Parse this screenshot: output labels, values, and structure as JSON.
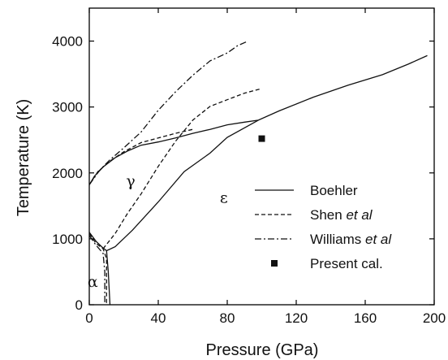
{
  "chart_data": {
    "type": "line",
    "xlabel": "Pressure (GPa)",
    "ylabel": "Temperature (K)",
    "xlim": [
      0,
      200
    ],
    "ylim": [
      0,
      4500
    ],
    "x_ticks": [
      0,
      40,
      80,
      120,
      160,
      200
    ],
    "y_ticks": [
      0,
      1000,
      2000,
      3000,
      4000
    ],
    "x_tick_labels": [
      "0",
      "40",
      "80",
      "120",
      "160",
      "200"
    ],
    "y_tick_labels": [
      "0",
      "1000",
      "2000",
      "3000",
      "4000"
    ],
    "grid": false,
    "legend_position": "right",
    "series": [
      {
        "name": "Boehler",
        "style": "solid",
        "segments": [
          [
            [
              0,
              1820
            ],
            [
              3,
              1950
            ],
            [
              8,
              2090
            ],
            [
              15,
              2230
            ],
            [
              22,
              2330
            ],
            [
              30,
              2420
            ],
            [
              40,
              2470
            ],
            [
              50,
              2530
            ],
            [
              60,
              2600
            ],
            [
              70,
              2660
            ],
            [
              80,
              2730
            ],
            [
              90,
              2770
            ],
            [
              98,
              2800
            ],
            [
              110,
              2940
            ],
            [
              130,
              3150
            ],
            [
              150,
              3330
            ],
            [
              170,
              3490
            ],
            [
              185,
              3650
            ],
            [
              196,
              3780
            ]
          ],
          [
            [
              98,
              2800
            ],
            [
              80,
              2540
            ],
            [
              70,
              2300
            ],
            [
              55,
              2020
            ],
            [
              40,
              1560
            ],
            [
              25,
              1130
            ],
            [
              15,
              880
            ],
            [
              10,
              820
            ]
          ],
          [
            [
              0,
              1100
            ],
            [
              4,
              960
            ],
            [
              8,
              860
            ],
            [
              10,
              820
            ]
          ],
          [
            [
              10,
              820
            ],
            [
              11,
              500
            ],
            [
              12,
              0
            ]
          ]
        ]
      },
      {
        "name": "Shen et al",
        "label_main": "Shen",
        "label_italic": "et al",
        "style": "dashed",
        "segments": [
          [
            [
              0,
              1820
            ],
            [
              5,
              2020
            ],
            [
              12,
              2180
            ],
            [
              20,
              2320
            ],
            [
              30,
              2460
            ],
            [
              40,
              2530
            ],
            [
              50,
              2600
            ],
            [
              60,
              2660
            ]
          ],
          [
            [
              8,
              850
            ],
            [
              15,
              1080
            ],
            [
              22,
              1380
            ],
            [
              30,
              1680
            ],
            [
              40,
              2100
            ],
            [
              50,
              2480
            ],
            [
              60,
              2800
            ],
            [
              70,
              3010
            ],
            [
              80,
              3110
            ],
            [
              90,
              3210
            ],
            [
              100,
              3280
            ]
          ],
          [
            [
              0,
              1080
            ],
            [
              4,
              930
            ],
            [
              8,
              850
            ],
            [
              10,
              700
            ],
            [
              10,
              400
            ],
            [
              10,
              0
            ]
          ]
        ]
      },
      {
        "name": "Williams et al",
        "label_main": "Williams",
        "label_italic": "et al",
        "style": "dashdot",
        "segments": [
          [
            [
              0,
              1820
            ],
            [
              6,
              2040
            ],
            [
              12,
              2200
            ],
            [
              20,
              2380
            ],
            [
              30,
              2620
            ],
            [
              40,
              2950
            ],
            [
              50,
              3230
            ],
            [
              60,
              3480
            ],
            [
              70,
              3700
            ],
            [
              80,
              3820
            ],
            [
              86,
              3930
            ],
            [
              92,
              4000
            ]
          ],
          [
            [
              0,
              1050
            ],
            [
              4,
              900
            ],
            [
              8,
              780
            ],
            [
              9,
              500
            ],
            [
              9,
              0
            ]
          ]
        ]
      },
      {
        "name": "Present cal.",
        "style": "marker",
        "points": [
          [
            100,
            2520
          ]
        ]
      }
    ],
    "annotations": [
      {
        "text": "γ",
        "x": 24,
        "y": 1800
      },
      {
        "text": "ε",
        "x": 78,
        "y": 1550
      },
      {
        "text": "α",
        "x": 2,
        "y": 270
      }
    ]
  }
}
